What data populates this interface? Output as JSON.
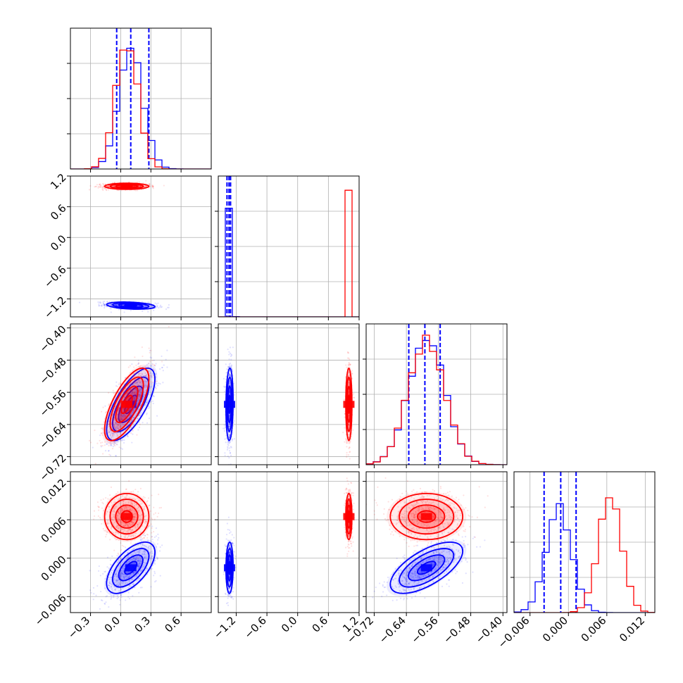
{
  "chart_data": {
    "type": "corner",
    "parameters": [
      {
        "range": [
          -0.5,
          0.9
        ],
        "ticks": [
          -0.3,
          0.0,
          0.3,
          0.6
        ],
        "tick_labels": [
          "−0.3",
          "0.0",
          "0.3",
          "0.6"
        ]
      },
      {
        "range": [
          -1.55,
          1.2
        ],
        "ticks": [
          -1.2,
          -0.6,
          0.0,
          0.6,
          1.2
        ],
        "tick_labels": [
          "−1.2",
          "−0.6",
          "0.0",
          "0.6",
          "1.2"
        ]
      },
      {
        "range": [
          -0.74,
          -0.39
        ],
        "ticks": [
          -0.72,
          -0.64,
          -0.56,
          -0.48,
          -0.4
        ],
        "tick_labels": [
          "−0.72",
          "−0.64",
          "−0.56",
          "−0.48",
          "−0.40"
        ]
      },
      {
        "range": [
          -0.0085,
          0.0135
        ],
        "ticks": [
          -0.006,
          0.0,
          0.006,
          0.012
        ],
        "tick_labels": [
          "−0.006",
          "0.000",
          "0.006",
          "0.012"
        ]
      }
    ],
    "series": [
      {
        "color": "#0000ff",
        "means": [
          0.1,
          -1.33,
          -0.59,
          -0.0015
        ],
        "sds": [
          0.12,
          0.035,
          0.045,
          0.002
        ],
        "corr": {
          "0-1": -0.3,
          "0-2": 0.7,
          "0-3": 0.6,
          "1-2": 0.1,
          "1-3": 0.05,
          "2-3": 0.65
        },
        "quantiles": [
          [
            -0.04,
            0.1,
            0.28
          ],
          [
            -1.38,
            -1.34,
            -1.31
          ],
          [
            -0.634,
            -0.594,
            -0.556
          ],
          [
            -0.0038,
            -0.0012,
            0.0012
          ]
        ]
      },
      {
        "color": "#ff0000",
        "means": [
          0.06,
          1.0,
          -0.59,
          0.0065
        ],
        "sds": [
          0.11,
          0.03,
          0.045,
          0.0018
        ],
        "corr": {
          "0-1": 0.0,
          "0-2": 0.7,
          "0-3": 0.0,
          "1-2": 0.0,
          "1-3": 0.0,
          "2-3": 0.0
        }
      }
    ],
    "grid": true,
    "histogram_density_peaks": [
      {
        "param": 0,
        "blue_peak": 0.85,
        "red_peak": 0.92
      },
      {
        "param": 1,
        "blue_peak": 0.85,
        "red_peak": 0.92
      },
      {
        "param": 2,
        "blue_peak": 0.9,
        "red_peak": 0.9
      },
      {
        "param": 3,
        "blue_peak": 0.75,
        "red_peak": 0.85
      }
    ]
  }
}
